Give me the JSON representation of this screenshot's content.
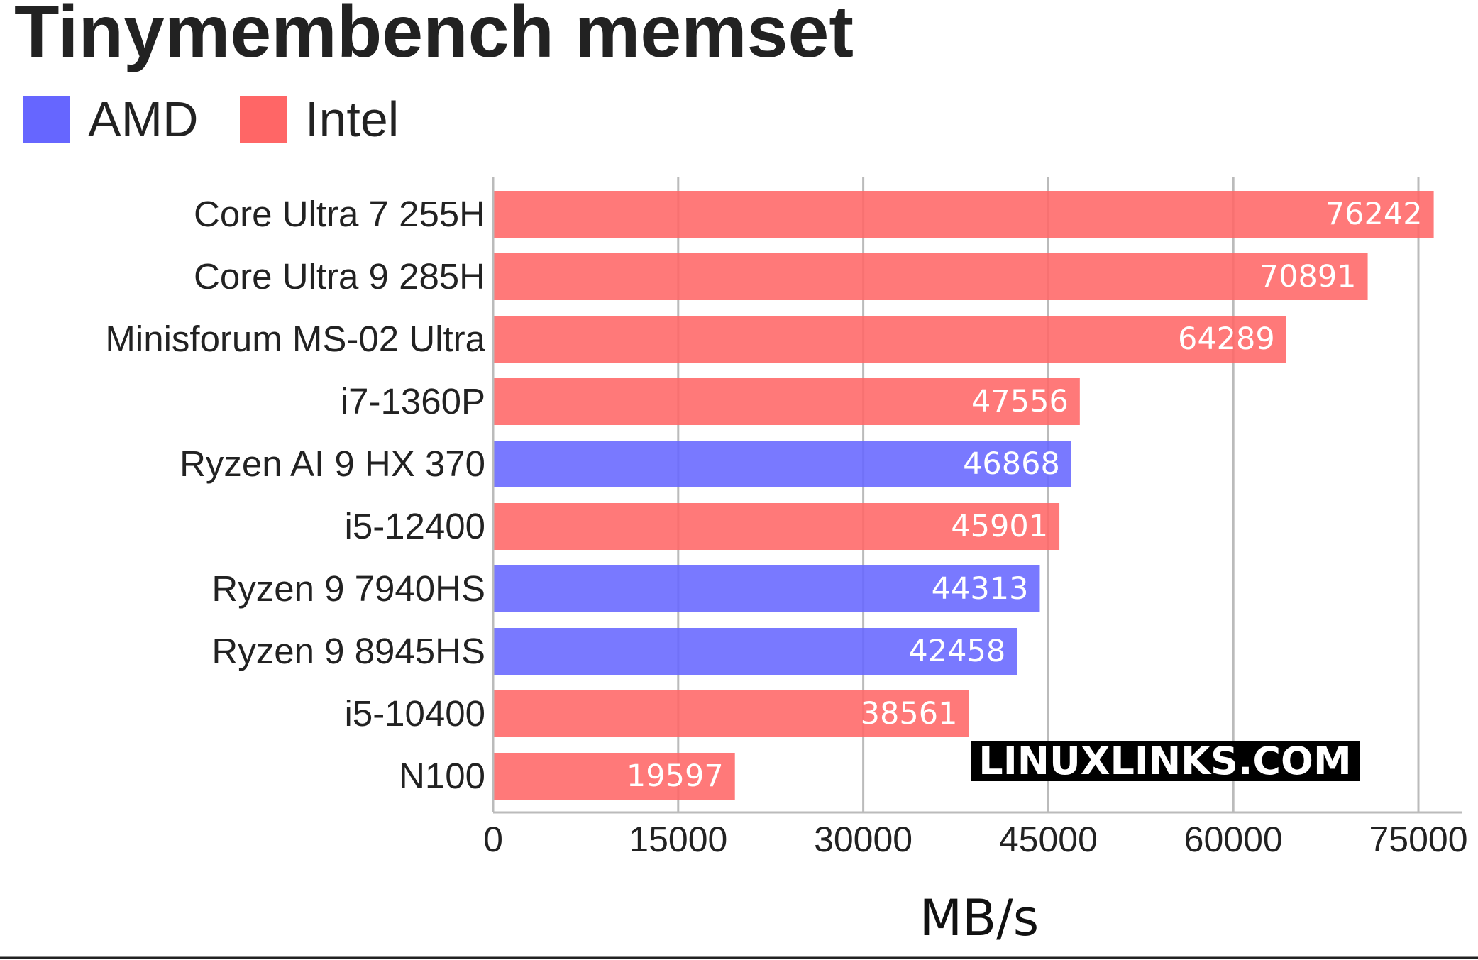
{
  "chart_data": {
    "type": "bar",
    "orientation": "horizontal",
    "title": "Tinymembench memset",
    "xlabel": "MB/s",
    "ylabel": "",
    "xlim": [
      0,
      78000
    ],
    "ticks": [
      "0",
      "15000",
      "30000",
      "45000",
      "60000",
      "75000"
    ],
    "grid": true,
    "legend_position": "top-left",
    "legend": [
      {
        "name": "AMD",
        "color": "#6666ff"
      },
      {
        "name": "Intel",
        "color": "#ff6666"
      }
    ],
    "categories": [
      "Core Ultra 7 255H",
      "Core Ultra 9 285H",
      "Minisforum MS-02 Ultra",
      "i7-1360P",
      "Ryzen AI 9 HX 370",
      "i5-12400",
      "Ryzen 9 7940HS",
      "Ryzen 9 8945HS",
      "i5-10400",
      "N100"
    ],
    "values": [
      76242,
      70891,
      64289,
      47556,
      46868,
      45901,
      44313,
      42458,
      38561,
      19597
    ],
    "series_of_bar": [
      "Intel",
      "Intel",
      "Intel",
      "Intel",
      "AMD",
      "Intel",
      "AMD",
      "AMD",
      "Intel",
      "Intel"
    ]
  },
  "watermark": "LINUXLINKS.COM"
}
